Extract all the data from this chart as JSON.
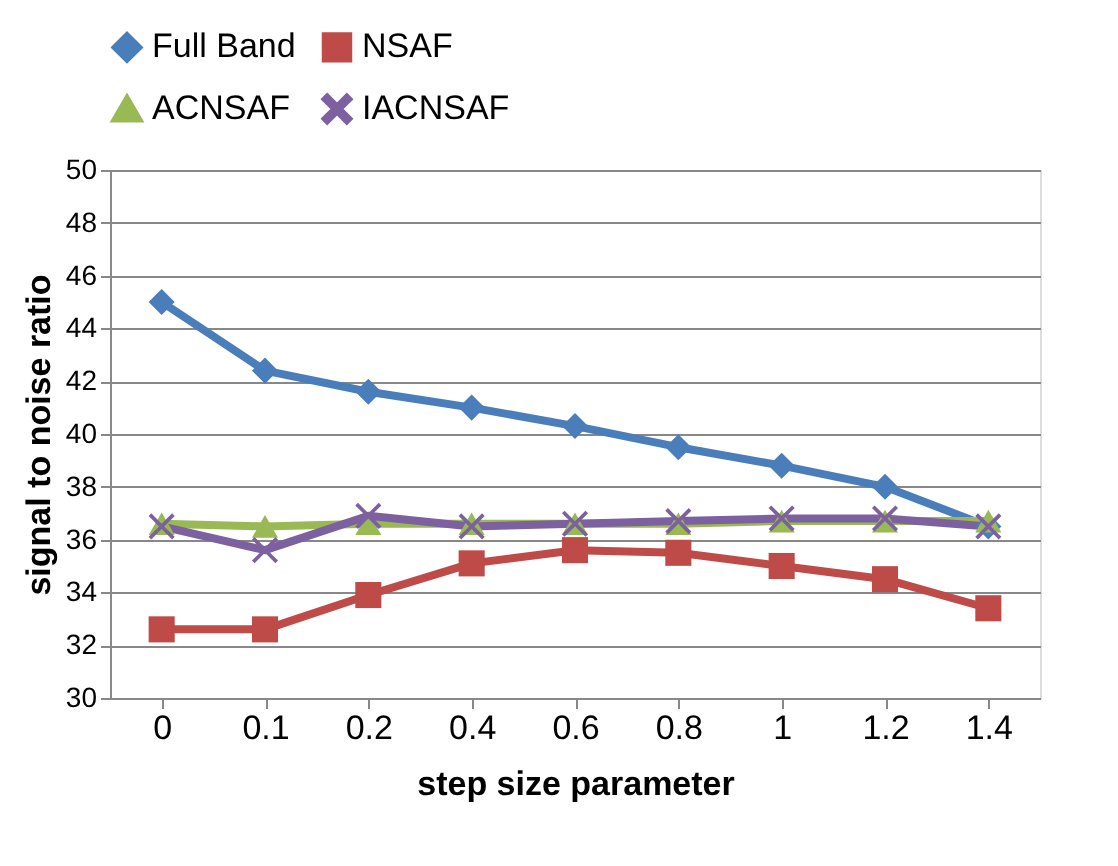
{
  "chart_data": {
    "type": "line",
    "xlabel": "step size parameter",
    "ylabel": "signal to noise ratio",
    "categories": [
      "0",
      "0.1",
      "0.2",
      "0.4",
      "0.6",
      "0.8",
      "1",
      "1.2",
      "1.4"
    ],
    "series": [
      {
        "name": "Full Band",
        "color": "#4a7ebb",
        "marker": "diamond",
        "values": [
          45.0,
          42.4,
          41.6,
          41.0,
          40.3,
          39.5,
          38.8,
          38.0,
          36.5
        ]
      },
      {
        "name": "NSAF",
        "color": "#be4b48",
        "marker": "square",
        "values": [
          32.6,
          32.6,
          33.9,
          35.1,
          35.6,
          35.5,
          35.0,
          34.5,
          33.4
        ]
      },
      {
        "name": "ACNSAF",
        "color": "#98b954",
        "marker": "triangle",
        "values": [
          36.6,
          36.5,
          36.6,
          36.6,
          36.6,
          36.6,
          36.7,
          36.7,
          36.7
        ]
      },
      {
        "name": "IACNSAF",
        "color": "#7d60a0",
        "marker": "cross",
        "values": [
          36.5,
          35.6,
          36.9,
          36.5,
          36.6,
          36.7,
          36.8,
          36.8,
          36.5
        ]
      }
    ],
    "ylim": [
      30,
      50
    ],
    "yticks": [
      30,
      32,
      34,
      36,
      38,
      40,
      42,
      44,
      46,
      48,
      50
    ],
    "grid": "y",
    "legend": "top",
    "line_style": "solid"
  }
}
